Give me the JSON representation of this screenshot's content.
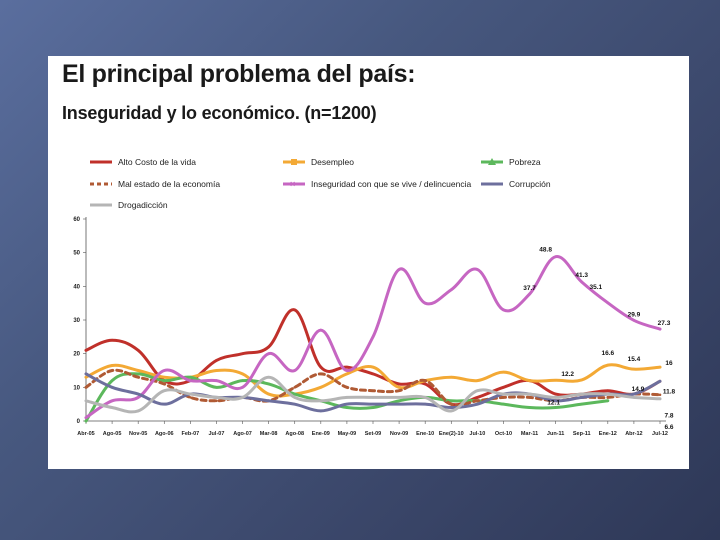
{
  "slide": {
    "title": "El principal problema del país:",
    "subtitle": "Inseguridad y lo económico. (n=1200)"
  },
  "chart_data": {
    "type": "line",
    "ylim": [
      0,
      60
    ],
    "yticks": [
      0,
      10,
      20,
      30,
      40,
      50,
      60
    ],
    "grid": false,
    "legend_position": "top",
    "categories": [
      "Abr-05",
      "Ago-05",
      "Nov-05",
      "Ago-06",
      "Feb-07",
      "Jul-07",
      "Ago-07",
      "Mar-08",
      "Ago-08",
      "Ene-09",
      "May-09",
      "Set-09",
      "Nov-09",
      "Ene-10",
      "Ene(2)-10",
      "Jul-10",
      "Oct-10",
      "Mar-11",
      "Jun-11",
      "Sep-11",
      "Ene-12",
      "Abr-12",
      "Jul-12"
    ],
    "series": [
      {
        "name": "Alto Costo de la vida",
        "color": "#c0302a",
        "dash": "solid",
        "values": [
          21,
          24,
          21,
          12,
          12,
          18,
          20,
          22,
          33,
          16,
          16,
          14,
          11,
          11,
          5,
          7,
          10,
          12,
          8,
          8,
          9,
          8,
          11.8
        ]
      },
      {
        "name": "Desempleo",
        "color": "#f3a935",
        "dash": "solid",
        "values": [
          13,
          16.5,
          15,
          13,
          13,
          15,
          14,
          8,
          8,
          10,
          14,
          16,
          10,
          12,
          13,
          12,
          14.5,
          12,
          12.1,
          12.2,
          16.6,
          15.4,
          16
        ]
      },
      {
        "name": "Pobreza",
        "color": "#5cb85c",
        "dash": "solid",
        "values": [
          0,
          12,
          14,
          12,
          13,
          10,
          12,
          11,
          8,
          6,
          4,
          4,
          6,
          7,
          6,
          6,
          5,
          4,
          4,
          5,
          6,
          null,
          null
        ]
      },
      {
        "name": "Mal estado de la economía",
        "color": "#b05a34",
        "dash": "dashed",
        "values": [
          10,
          15,
          13,
          11,
          7,
          6,
          7,
          6,
          10,
          14,
          10,
          9,
          9,
          12,
          5,
          6,
          7,
          7,
          6,
          7,
          7,
          8,
          7.8
        ]
      },
      {
        "name": "Inseguridad con que se vive / delincuencia",
        "color": "#c666c2",
        "dash": "solid",
        "values": [
          1,
          6,
          7,
          15,
          12,
          12,
          10,
          20,
          15,
          27,
          15,
          25,
          45,
          35,
          39,
          45,
          33,
          37.7,
          48.8,
          41.3,
          35.1,
          29.9,
          27.3
        ]
      },
      {
        "name": "Corrupción",
        "color": "#6d6f9d",
        "dash": "solid",
        "values": [
          14,
          10,
          8,
          5,
          8,
          7,
          7,
          6,
          5,
          3,
          5,
          5,
          5,
          5,
          4,
          5,
          8,
          8,
          6,
          7,
          8,
          8,
          11.8
        ]
      },
      {
        "name": "Drogadicción",
        "color": "#b5b5b5",
        "dash": "solid",
        "values": [
          6,
          4,
          3,
          9,
          8,
          7,
          7,
          13,
          7,
          6,
          7,
          7,
          7,
          7,
          3,
          9,
          8,
          8,
          7,
          8,
          8,
          7,
          6.6
        ]
      }
    ],
    "annotations": [
      "48.8",
      "41.3",
      "37.7",
      "35.1",
      "29.9",
      "27.3",
      "16.6",
      "15.4",
      "14.9",
      "12.1",
      "12.2",
      "16",
      "11.8",
      "7.8",
      "6.6"
    ]
  }
}
